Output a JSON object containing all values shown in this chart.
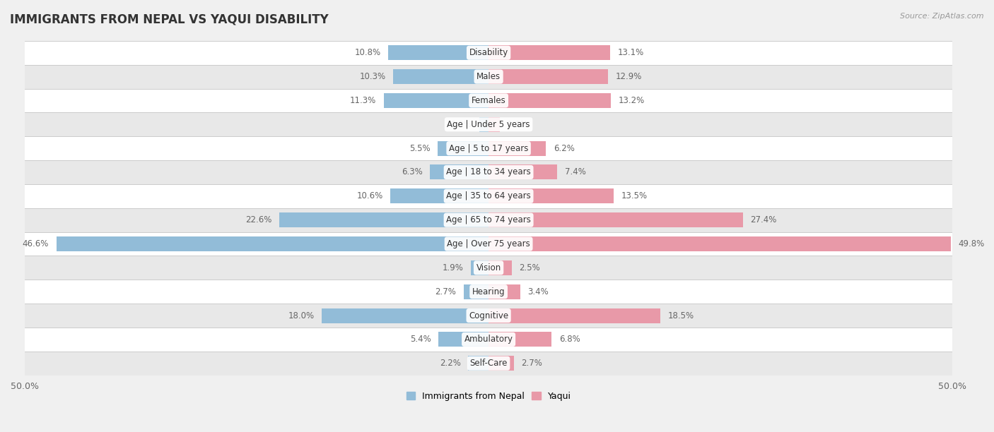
{
  "title": "IMMIGRANTS FROM NEPAL VS YAQUI DISABILITY",
  "source": "Source: ZipAtlas.com",
  "categories": [
    "Disability",
    "Males",
    "Females",
    "Age | Under 5 years",
    "Age | 5 to 17 years",
    "Age | 18 to 34 years",
    "Age | 35 to 64 years",
    "Age | 65 to 74 years",
    "Age | Over 75 years",
    "Vision",
    "Hearing",
    "Cognitive",
    "Ambulatory",
    "Self-Care"
  ],
  "nepal_values": [
    10.8,
    10.3,
    11.3,
    1.0,
    5.5,
    6.3,
    10.6,
    22.6,
    46.6,
    1.9,
    2.7,
    18.0,
    5.4,
    2.2
  ],
  "yaqui_values": [
    13.1,
    12.9,
    13.2,
    1.2,
    6.2,
    7.4,
    13.5,
    27.4,
    49.8,
    2.5,
    3.4,
    18.5,
    6.8,
    2.7
  ],
  "nepal_color": "#92bcd8",
  "yaqui_color": "#e899a8",
  "nepal_label": "Immigrants from Nepal",
  "yaqui_label": "Yaqui",
  "xlim": 50.0,
  "axis_label": "50.0%",
  "bar_height": 0.62,
  "bg_color": "#f0f0f0",
  "row_colors": [
    "#ffffff",
    "#e8e8e8"
  ],
  "title_fontsize": 12,
  "label_fontsize": 9,
  "value_fontsize": 8.5,
  "cat_fontsize": 8.5
}
